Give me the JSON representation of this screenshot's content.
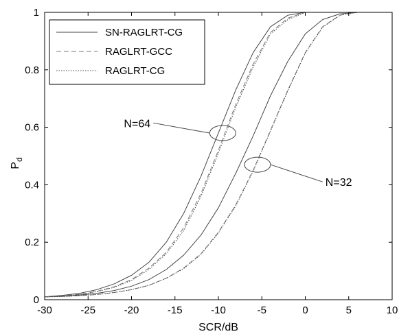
{
  "chart_data": {
    "type": "line",
    "xlabel": "SCR/dB",
    "ylabel": "P",
    "ylabel_subscript": "d",
    "xlim": [
      -30,
      10
    ],
    "ylim": [
      0,
      1
    ],
    "xticks": [
      -30,
      -25,
      -20,
      -15,
      -10,
      -5,
      0,
      5,
      10
    ],
    "yticks": [
      0,
      0.2,
      0.4,
      0.6,
      0.8,
      1
    ],
    "xtick_labels": [
      "-30",
      "-25",
      "-20",
      "-15",
      "-10",
      "-5",
      "0",
      "5",
      "10"
    ],
    "ytick_labels": [
      "0",
      "0.2",
      "0.4",
      "0.6",
      "0.8",
      "1"
    ],
    "grid": false,
    "legend_position": "top-left",
    "legend": [
      {
        "label": "SN-RAGLRT-CG",
        "style": "solid"
      },
      {
        "label": "RAGLRT-GCC",
        "style": "dashed"
      },
      {
        "label": "RAGLRT-CG",
        "style": "dotted"
      }
    ],
    "x": [
      -30,
      -28,
      -26,
      -24,
      -22,
      -20,
      -18,
      -16,
      -14,
      -12,
      -10,
      -8,
      -6,
      -4,
      -2,
      0,
      2,
      4,
      6,
      8,
      10
    ],
    "series": [
      {
        "group": "N=64",
        "style": "solid",
        "values": [
          0.01,
          0.015,
          0.022,
          0.035,
          0.055,
          0.085,
          0.13,
          0.2,
          0.3,
          0.43,
          0.58,
          0.73,
          0.86,
          0.95,
          0.99,
          1.0,
          1.0,
          1.0,
          1.0,
          1.0,
          1.0
        ]
      },
      {
        "group": "N=64",
        "style": "dashed",
        "values": [
          0.01,
          0.013,
          0.019,
          0.029,
          0.045,
          0.07,
          0.11,
          0.165,
          0.25,
          0.37,
          0.52,
          0.68,
          0.82,
          0.93,
          0.98,
          1.0,
          1.0,
          1.0,
          1.0,
          1.0,
          1.0
        ]
      },
      {
        "group": "N=64",
        "style": "dotted",
        "values": [
          0.01,
          0.012,
          0.018,
          0.028,
          0.043,
          0.067,
          0.105,
          0.16,
          0.24,
          0.36,
          0.51,
          0.67,
          0.81,
          0.925,
          0.975,
          1.0,
          1.0,
          1.0,
          1.0,
          1.0,
          1.0
        ]
      },
      {
        "group": "N=32",
        "style": "solid",
        "values": [
          0.01,
          0.012,
          0.016,
          0.022,
          0.032,
          0.047,
          0.07,
          0.105,
          0.155,
          0.225,
          0.32,
          0.44,
          0.57,
          0.71,
          0.83,
          0.925,
          0.975,
          0.995,
          1.0,
          1.0,
          1.0
        ]
      },
      {
        "group": "N=32",
        "style": "dashed",
        "values": [
          0.01,
          0.011,
          0.014,
          0.018,
          0.025,
          0.035,
          0.05,
          0.075,
          0.11,
          0.16,
          0.235,
          0.33,
          0.45,
          0.59,
          0.73,
          0.86,
          0.95,
          0.99,
          1.0,
          1.0,
          1.0
        ]
      },
      {
        "group": "N=32",
        "style": "dotted",
        "values": [
          0.01,
          0.011,
          0.014,
          0.018,
          0.025,
          0.035,
          0.05,
          0.074,
          0.108,
          0.158,
          0.232,
          0.327,
          0.447,
          0.587,
          0.728,
          0.858,
          0.948,
          0.99,
          1.0,
          1.0,
          1.0
        ]
      }
    ],
    "annotations": [
      {
        "text": "N=64",
        "ellipse_center": [
          -9.5,
          0.58
        ],
        "label_anchor": [
          -17.5,
          0.615
        ]
      },
      {
        "text": "N=32",
        "ellipse_center": [
          -5.5,
          0.47
        ],
        "label_anchor": [
          2.0,
          0.41
        ]
      }
    ]
  }
}
